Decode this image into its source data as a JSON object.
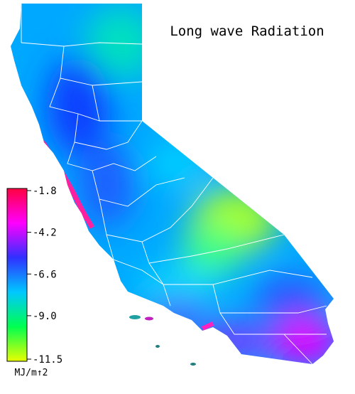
{
  "title": "Long wave Radiation",
  "colorbar": {
    "lim": [
      -1.8,
      -11.5
    ],
    "ticks": [
      -1.8,
      -4.2,
      -6.6,
      {
        "value": -9,
        "label": "-9.0"
      },
      -11.5
    ],
    "unit": "MJ/m↑2",
    "colors": [
      "#ff0040",
      "#ff00ff",
      "#3030ff",
      "#00c8ff",
      "#00ff50",
      "#e8ff00"
    ]
  }
}
